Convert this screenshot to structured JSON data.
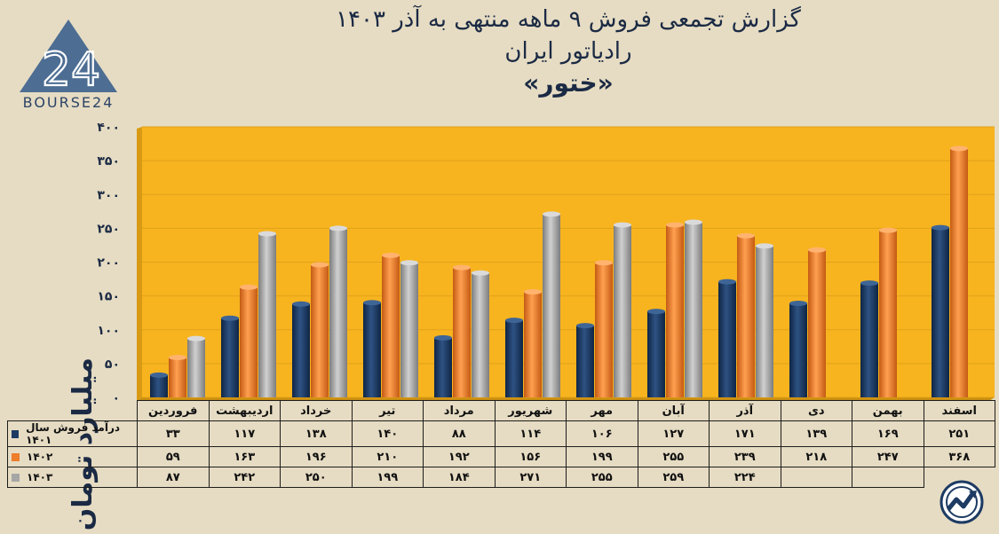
{
  "header": {
    "line1": "گزارش تجمعی فروش ۹ ماهه منتهی به آذر ۱۴۰۳",
    "line2": "رادیاتور ایران",
    "line3": "«ختور»"
  },
  "logo": {
    "text": "BOURSE24",
    "mark": "24"
  },
  "colors": {
    "plot_bg": "#f7b41f",
    "s1401": "#1d3b63",
    "s1402": "#ee7d2c",
    "s1403": "#a6a6a6"
  },
  "chart_data": {
    "type": "bar",
    "ylabel": "میلیارد تومان",
    "ylim": [
      0,
      400
    ],
    "yticks": [
      "۰",
      "۵۰",
      "۱۰۰",
      "۱۵۰",
      "۲۰۰",
      "۲۵۰",
      "۳۰۰",
      "۳۵۰",
      "۴۰۰"
    ],
    "ytick_values": [
      0,
      50,
      100,
      150,
      200,
      250,
      300,
      350,
      400
    ],
    "categories": [
      "فروردین",
      "اردیبهشت",
      "خرداد",
      "تیر",
      "مرداد",
      "شهریور",
      "مهر",
      "آبان",
      "آذر",
      "دی",
      "بهمن",
      "اسفند"
    ],
    "series": [
      {
        "name": "درآمد فروش سال ۱۴۰۱",
        "values": [
          33,
          117,
          138,
          140,
          88,
          114,
          106,
          127,
          171,
          139,
          169,
          251
        ],
        "labels": [
          "۳۳",
          "۱۱۷",
          "۱۳۸",
          "۱۴۰",
          "۸۸",
          "۱۱۴",
          "۱۰۶",
          "۱۲۷",
          "۱۷۱",
          "۱۳۹",
          "۱۶۹",
          "۲۵۱"
        ]
      },
      {
        "name": "۱۴۰۲",
        "values": [
          59,
          163,
          196,
          210,
          192,
          156,
          199,
          255,
          239,
          218,
          247,
          368
        ],
        "labels": [
          "۵۹",
          "۱۶۳",
          "۱۹۶",
          "۲۱۰",
          "۱۹۲",
          "۱۵۶",
          "۱۹۹",
          "۲۵۵",
          "۲۳۹",
          "۲۱۸",
          "۲۴۷",
          "۳۶۸"
        ]
      },
      {
        "name": "۱۴۰۳",
        "values": [
          87,
          242,
          250,
          199,
          184,
          271,
          255,
          259,
          224,
          null,
          null,
          null
        ],
        "labels": [
          "۸۷",
          "۲۴۲",
          "۲۵۰",
          "۱۹۹",
          "۱۸۴",
          "۲۷۱",
          "۲۵۵",
          "۲۵۹",
          "۲۲۴",
          "",
          "",
          ""
        ]
      }
    ],
    "grid": true,
    "legend": "table"
  }
}
